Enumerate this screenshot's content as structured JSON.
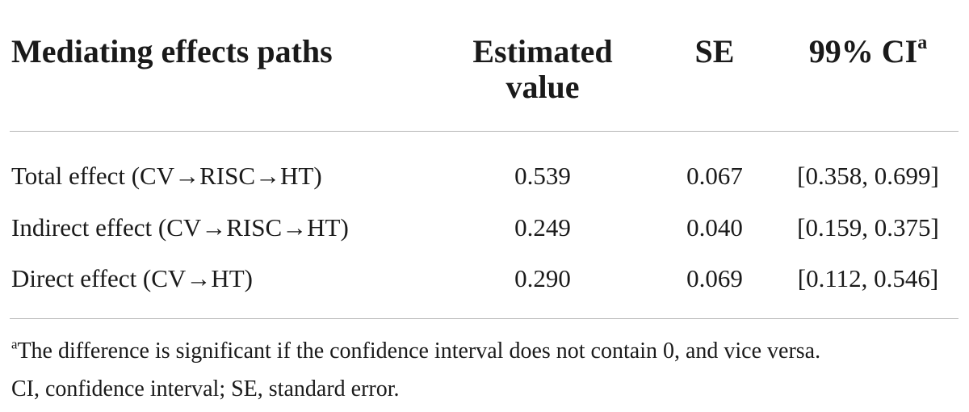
{
  "table": {
    "headers": [
      "Mediating effects paths",
      "Estimated value",
      "SE",
      "99% CI"
    ],
    "header_note_mark": "a",
    "rows": [
      [
        "Total effect (CV→RISC→HT)",
        "0.539",
        "0.067",
        "[0.358, 0.699]"
      ],
      [
        "Indirect effect (CV→RISC→HT)",
        "0.249",
        "0.040",
        "[0.159, 0.375]"
      ],
      [
        "Direct effect (CV→HT)",
        "0.290",
        "0.069",
        "[0.112, 0.546]"
      ]
    ]
  },
  "footnote": {
    "mark": "a",
    "lines": [
      "The difference is significant if the confidence interval does not contain 0, and vice versa.",
      "CI, confidence interval; SE, standard error."
    ]
  }
}
